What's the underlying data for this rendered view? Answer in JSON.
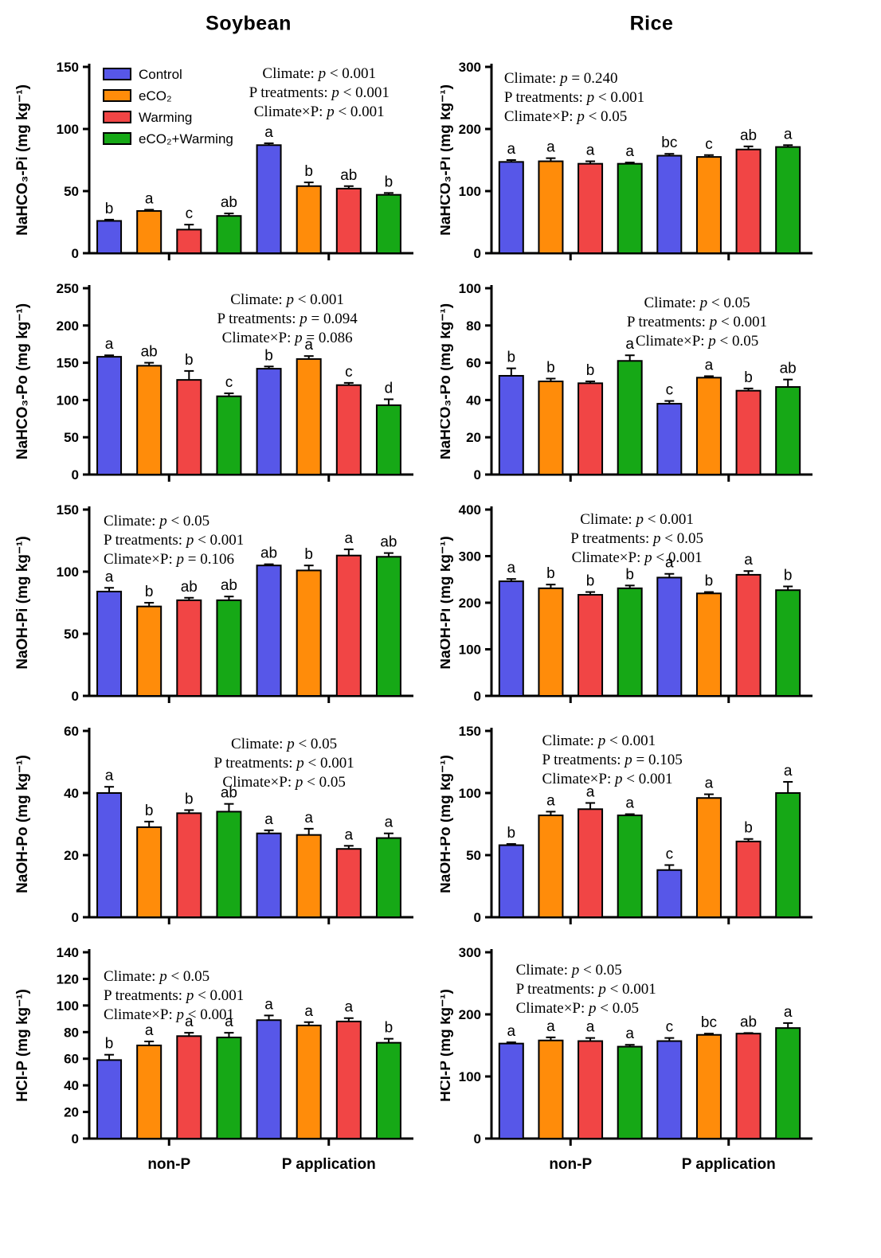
{
  "figure": {
    "titles": [
      "Soybean",
      "Rice"
    ],
    "x_group_labels": [
      "non-P",
      "P application"
    ],
    "treatments": [
      {
        "label": "Control",
        "color": "#5757e8"
      },
      {
        "label": "eCO₂",
        "color": "#ff8c0a"
      },
      {
        "label": "Warming",
        "color": "#f14545"
      },
      {
        "label": "eCO₂+Warming",
        "color": "#16a816"
      }
    ]
  },
  "chart_data": [
    {
      "id": "soybean-nahco3-pi",
      "type": "bar",
      "crop": "Soybean",
      "ylabel": "NaHCO₃-Pi (mg kg⁻¹)",
      "ylim": [
        0,
        150
      ],
      "yticks": [
        0,
        50,
        100,
        150
      ],
      "categories": [
        "non-P",
        "P application"
      ],
      "series": [
        {
          "name": "Control",
          "values": [
            26,
            87
          ],
          "errors": [
            1,
            1.5
          ],
          "letters": [
            "b",
            "a"
          ]
        },
        {
          "name": "eCO₂",
          "values": [
            34,
            54
          ],
          "errors": [
            1,
            3
          ],
          "letters": [
            "a",
            "b"
          ]
        },
        {
          "name": "Warming",
          "values": [
            19,
            52
          ],
          "errors": [
            4,
            2
          ],
          "letters": [
            "c",
            "ab"
          ]
        },
        {
          "name": "eCO₂+Warming",
          "values": [
            30,
            47
          ],
          "errors": [
            2,
            1.5
          ],
          "letters": [
            "ab",
            "b"
          ]
        }
      ],
      "stats": {
        "lines": [
          "Climate: p < 0.001",
          "P treatments: p < 0.001",
          "Climate×P: p < 0.001"
        ],
        "align": "center",
        "xf": 0.72,
        "y0": 34
      },
      "legend": true,
      "show_x_labels": false,
      "col": 0
    },
    {
      "id": "rice-nahco3-pi",
      "type": "bar",
      "crop": "Rice",
      "ylabel": "NaHCO₃-Pi (mg kg⁻¹)",
      "ylim": [
        0,
        300
      ],
      "yticks": [
        0,
        100,
        200,
        300
      ],
      "categories": [
        "non-P",
        "P application"
      ],
      "series": [
        {
          "name": "Control",
          "values": [
            147,
            157
          ],
          "errors": [
            3,
            3
          ],
          "letters": [
            "a",
            "bc"
          ]
        },
        {
          "name": "eCO₂",
          "values": [
            148,
            155
          ],
          "errors": [
            5,
            3
          ],
          "letters": [
            "a",
            "c"
          ]
        },
        {
          "name": "Warming",
          "values": [
            144,
            167
          ],
          "errors": [
            4,
            5
          ],
          "letters": [
            "a",
            "ab"
          ]
        },
        {
          "name": "eCO₂+Warming",
          "values": [
            144,
            171
          ],
          "errors": [
            2,
            3
          ],
          "letters": [
            "a",
            "a"
          ]
        }
      ],
      "stats": {
        "lines": [
          "Climate: p = 0.240",
          "P treatments: p < 0.001",
          "Climate×P: p < 0.05"
        ],
        "align": "left",
        "xf": 0.04,
        "y0": 40
      },
      "legend": false,
      "show_x_labels": false,
      "col": 1
    },
    {
      "id": "soybean-nahco3-po",
      "type": "bar",
      "crop": "Soybean",
      "ylabel": "NaHCO₃-Po (mg kg⁻¹)",
      "ylim": [
        0,
        250
      ],
      "yticks": [
        0,
        50,
        100,
        150,
        200,
        250
      ],
      "categories": [
        "non-P",
        "P application"
      ],
      "series": [
        {
          "name": "Control",
          "values": [
            158,
            142
          ],
          "errors": [
            2,
            3
          ],
          "letters": [
            "a",
            "b"
          ]
        },
        {
          "name": "eCO₂",
          "values": [
            146,
            155
          ],
          "errors": [
            4,
            4
          ],
          "letters": [
            "ab",
            "a"
          ]
        },
        {
          "name": "Warming",
          "values": [
            127,
            120
          ],
          "errors": [
            12,
            3
          ],
          "letters": [
            "b",
            "c"
          ]
        },
        {
          "name": "eCO₂+Warming",
          "values": [
            105,
            93
          ],
          "errors": [
            4,
            8
          ],
          "letters": [
            "c",
            "d"
          ]
        }
      ],
      "stats": {
        "lines": [
          "Climate: p < 0.001",
          "P treatments: p = 0.094",
          "Climate×P: p = 0.086"
        ],
        "align": "center",
        "xf": 0.62,
        "y0": 40
      },
      "legend": false,
      "show_x_labels": false,
      "col": 0
    },
    {
      "id": "rice-nahco3-po",
      "type": "bar",
      "crop": "Rice",
      "ylabel": "NaHCO₃-Po (mg kg⁻¹)",
      "ylim": [
        0,
        100
      ],
      "yticks": [
        0,
        20,
        40,
        60,
        80,
        100
      ],
      "categories": [
        "non-P",
        "P application"
      ],
      "series": [
        {
          "name": "Control",
          "values": [
            53,
            38
          ],
          "errors": [
            4,
            1.5
          ],
          "letters": [
            "b",
            "c"
          ]
        },
        {
          "name": "eCO₂",
          "values": [
            50,
            52
          ],
          "errors": [
            1.5,
            0.8
          ],
          "letters": [
            "b",
            "a"
          ]
        },
        {
          "name": "Warming",
          "values": [
            49,
            45
          ],
          "errors": [
            1,
            1.2
          ],
          "letters": [
            "b",
            "b"
          ]
        },
        {
          "name": "eCO₂+Warming",
          "values": [
            61,
            47
          ],
          "errors": [
            3,
            4
          ],
          "letters": [
            "a",
            "ab"
          ]
        }
      ],
      "stats": {
        "lines": [
          "Climate: p < 0.05",
          "P treatments: p < 0.001",
          "Climate×P: p < 0.05"
        ],
        "align": "center",
        "xf": 0.65,
        "y0": 44
      },
      "legend": false,
      "show_x_labels": false,
      "col": 1
    },
    {
      "id": "soybean-naoh-pi",
      "type": "bar",
      "crop": "Soybean",
      "ylabel": "NaOH-Pi (mg kg⁻¹)",
      "ylim": [
        0,
        150
      ],
      "yticks": [
        0,
        50,
        100,
        150
      ],
      "categories": [
        "non-P",
        "P application"
      ],
      "series": [
        {
          "name": "Control",
          "values": [
            84,
            105
          ],
          "errors": [
            3,
            1
          ],
          "letters": [
            "a",
            "ab"
          ]
        },
        {
          "name": "eCO₂",
          "values": [
            72,
            101
          ],
          "errors": [
            3,
            4
          ],
          "letters": [
            "b",
            "b"
          ]
        },
        {
          "name": "Warming",
          "values": [
            77,
            113
          ],
          "errors": [
            2,
            5
          ],
          "letters": [
            "ab",
            "a"
          ]
        },
        {
          "name": "eCO₂+Warming",
          "values": [
            77,
            112
          ],
          "errors": [
            3,
            3
          ],
          "letters": [
            "ab",
            "ab"
          ]
        }
      ],
      "stats": {
        "lines": [
          "Climate: p < 0.05",
          "P treatments: p < 0.001",
          "Climate×P: p = 0.106"
        ],
        "align": "left",
        "xf": 0.045,
        "y0": 40
      },
      "legend": false,
      "show_x_labels": false,
      "col": 0
    },
    {
      "id": "rice-naoh-pi",
      "type": "bar",
      "crop": "Rice",
      "ylabel": "NaOH-Pi (mg kg⁻¹)",
      "ylim": [
        0,
        400
      ],
      "yticks": [
        0,
        100,
        200,
        300,
        400
      ],
      "categories": [
        "non-P",
        "P application"
      ],
      "series": [
        {
          "name": "Control",
          "values": [
            246,
            254
          ],
          "errors": [
            5,
            8
          ],
          "letters": [
            "a",
            "a"
          ]
        },
        {
          "name": "eCO₂",
          "values": [
            231,
            220
          ],
          "errors": [
            8,
            3
          ],
          "letters": [
            "b",
            "b"
          ]
        },
        {
          "name": "Warming",
          "values": [
            217,
            260
          ],
          "errors": [
            6,
            8
          ],
          "letters": [
            "b",
            "a"
          ]
        },
        {
          "name": "eCO₂+Warming",
          "values": [
            231,
            227
          ],
          "errors": [
            6,
            8
          ],
          "letters": [
            "b",
            "b"
          ]
        }
      ],
      "stats": {
        "lines": [
          "Climate: p < 0.001",
          "P treatments: p < 0.05",
          "Climate×P: p < 0.001"
        ],
        "align": "center",
        "xf": 0.46,
        "y0": 38
      },
      "legend": false,
      "show_x_labels": false,
      "col": 1
    },
    {
      "id": "soybean-naoh-po",
      "type": "bar",
      "crop": "Soybean",
      "ylabel": "NaOH-Po (mg kg⁻¹)",
      "ylim": [
        0,
        60
      ],
      "yticks": [
        0,
        20,
        40,
        60
      ],
      "categories": [
        "non-P",
        "P application"
      ],
      "series": [
        {
          "name": "Control",
          "values": [
            40,
            27
          ],
          "errors": [
            2,
            1
          ],
          "letters": [
            "a",
            "a"
          ]
        },
        {
          "name": "eCO₂",
          "values": [
            29,
            26.5
          ],
          "errors": [
            1.8,
            2
          ],
          "letters": [
            "b",
            "a"
          ]
        },
        {
          "name": "Warming",
          "values": [
            33.5,
            22
          ],
          "errors": [
            1,
            1
          ],
          "letters": [
            "b",
            "a"
          ]
        },
        {
          "name": "eCO₂+Warming",
          "values": [
            34,
            25.5
          ],
          "errors": [
            2.5,
            1.5
          ],
          "letters": [
            "ab",
            "a"
          ]
        }
      ],
      "stats": {
        "lines": [
          "Climate: p < 0.05",
          "P treatments: p < 0.001",
          "Climate×P: p < 0.05"
        ],
        "align": "center",
        "xf": 0.61,
        "y0": 42
      },
      "legend": false,
      "show_x_labels": false,
      "col": 0
    },
    {
      "id": "rice-naoh-po",
      "type": "bar",
      "crop": "Rice",
      "ylabel": "NaOH-Po (mg kg⁻¹)",
      "ylim": [
        0,
        150
      ],
      "yticks": [
        0,
        50,
        100,
        150
      ],
      "categories": [
        "non-P",
        "P application"
      ],
      "series": [
        {
          "name": "Control",
          "values": [
            58,
            38
          ],
          "errors": [
            1,
            4
          ],
          "letters": [
            "b",
            "c"
          ]
        },
        {
          "name": "eCO₂",
          "values": [
            82,
            96
          ],
          "errors": [
            3,
            3
          ],
          "letters": [
            "a",
            "a"
          ]
        },
        {
          "name": "Warming",
          "values": [
            87,
            61
          ],
          "errors": [
            5,
            2
          ],
          "letters": [
            "a",
            "b"
          ]
        },
        {
          "name": "eCO₂+Warming",
          "values": [
            82,
            100
          ],
          "errors": [
            1,
            9
          ],
          "letters": [
            "a",
            "a"
          ]
        }
      ],
      "stats": {
        "lines": [
          "Climate: p < 0.001",
          "P treatments: p = 0.105",
          "Climate×P: p < 0.001"
        ],
        "align": "left",
        "xf": 0.16,
        "y0": 38
      },
      "legend": false,
      "show_x_labels": false,
      "col": 1
    },
    {
      "id": "soybean-hcl-p",
      "type": "bar",
      "crop": "Soybean",
      "ylabel": "HCl-P (mg kg⁻¹)",
      "ylim": [
        0,
        140
      ],
      "yticks": [
        0,
        20,
        40,
        60,
        80,
        100,
        120,
        140
      ],
      "categories": [
        "non-P",
        "P application"
      ],
      "series": [
        {
          "name": "Control",
          "values": [
            59,
            89
          ],
          "errors": [
            4,
            3.5
          ],
          "letters": [
            "b",
            "a"
          ]
        },
        {
          "name": "eCO₂",
          "values": [
            70,
            85
          ],
          "errors": [
            3,
            2.5
          ],
          "letters": [
            "a",
            "a"
          ]
        },
        {
          "name": "Warming",
          "values": [
            77,
            88
          ],
          "errors": [
            2.5,
            2.5
          ],
          "letters": [
            "a",
            "a"
          ]
        },
        {
          "name": "eCO₂+Warming",
          "values": [
            76,
            72
          ],
          "errors": [
            3.5,
            3
          ],
          "letters": [
            "a",
            "b"
          ]
        }
      ],
      "stats": {
        "lines": [
          "Climate: p < 0.05",
          "P treatments: p < 0.001",
          "Climate×P: p < 0.001"
        ],
        "align": "left",
        "xf": 0.045,
        "y0": 56
      },
      "legend": false,
      "show_x_labels": true,
      "col": 0
    },
    {
      "id": "rice-hcl-p",
      "type": "bar",
      "crop": "Rice",
      "ylabel": "HCl-P (mg kg⁻¹)",
      "ylim": [
        0,
        300
      ],
      "yticks": [
        0,
        100,
        200,
        300
      ],
      "categories": [
        "non-P",
        "P application"
      ],
      "series": [
        {
          "name": "Control",
          "values": [
            153,
            157
          ],
          "errors": [
            2,
            5
          ],
          "letters": [
            "a",
            "c"
          ]
        },
        {
          "name": "eCO₂",
          "values": [
            158,
            167
          ],
          "errors": [
            5,
            2
          ],
          "letters": [
            "a",
            "bc"
          ]
        },
        {
          "name": "Warming",
          "values": [
            157,
            169
          ],
          "errors": [
            5,
            1
          ],
          "letters": [
            "a",
            "ab"
          ]
        },
        {
          "name": "eCO₂+Warming",
          "values": [
            148,
            178
          ],
          "errors": [
            3,
            8
          ],
          "letters": [
            "a",
            "a"
          ]
        }
      ],
      "stats": {
        "lines": [
          "Climate: p < 0.05",
          "P treatments: p < 0.001",
          "Climate×P: p < 0.05"
        ],
        "align": "left",
        "xf": 0.077,
        "y0": 48
      },
      "legend": false,
      "show_x_labels": true,
      "col": 1
    }
  ]
}
